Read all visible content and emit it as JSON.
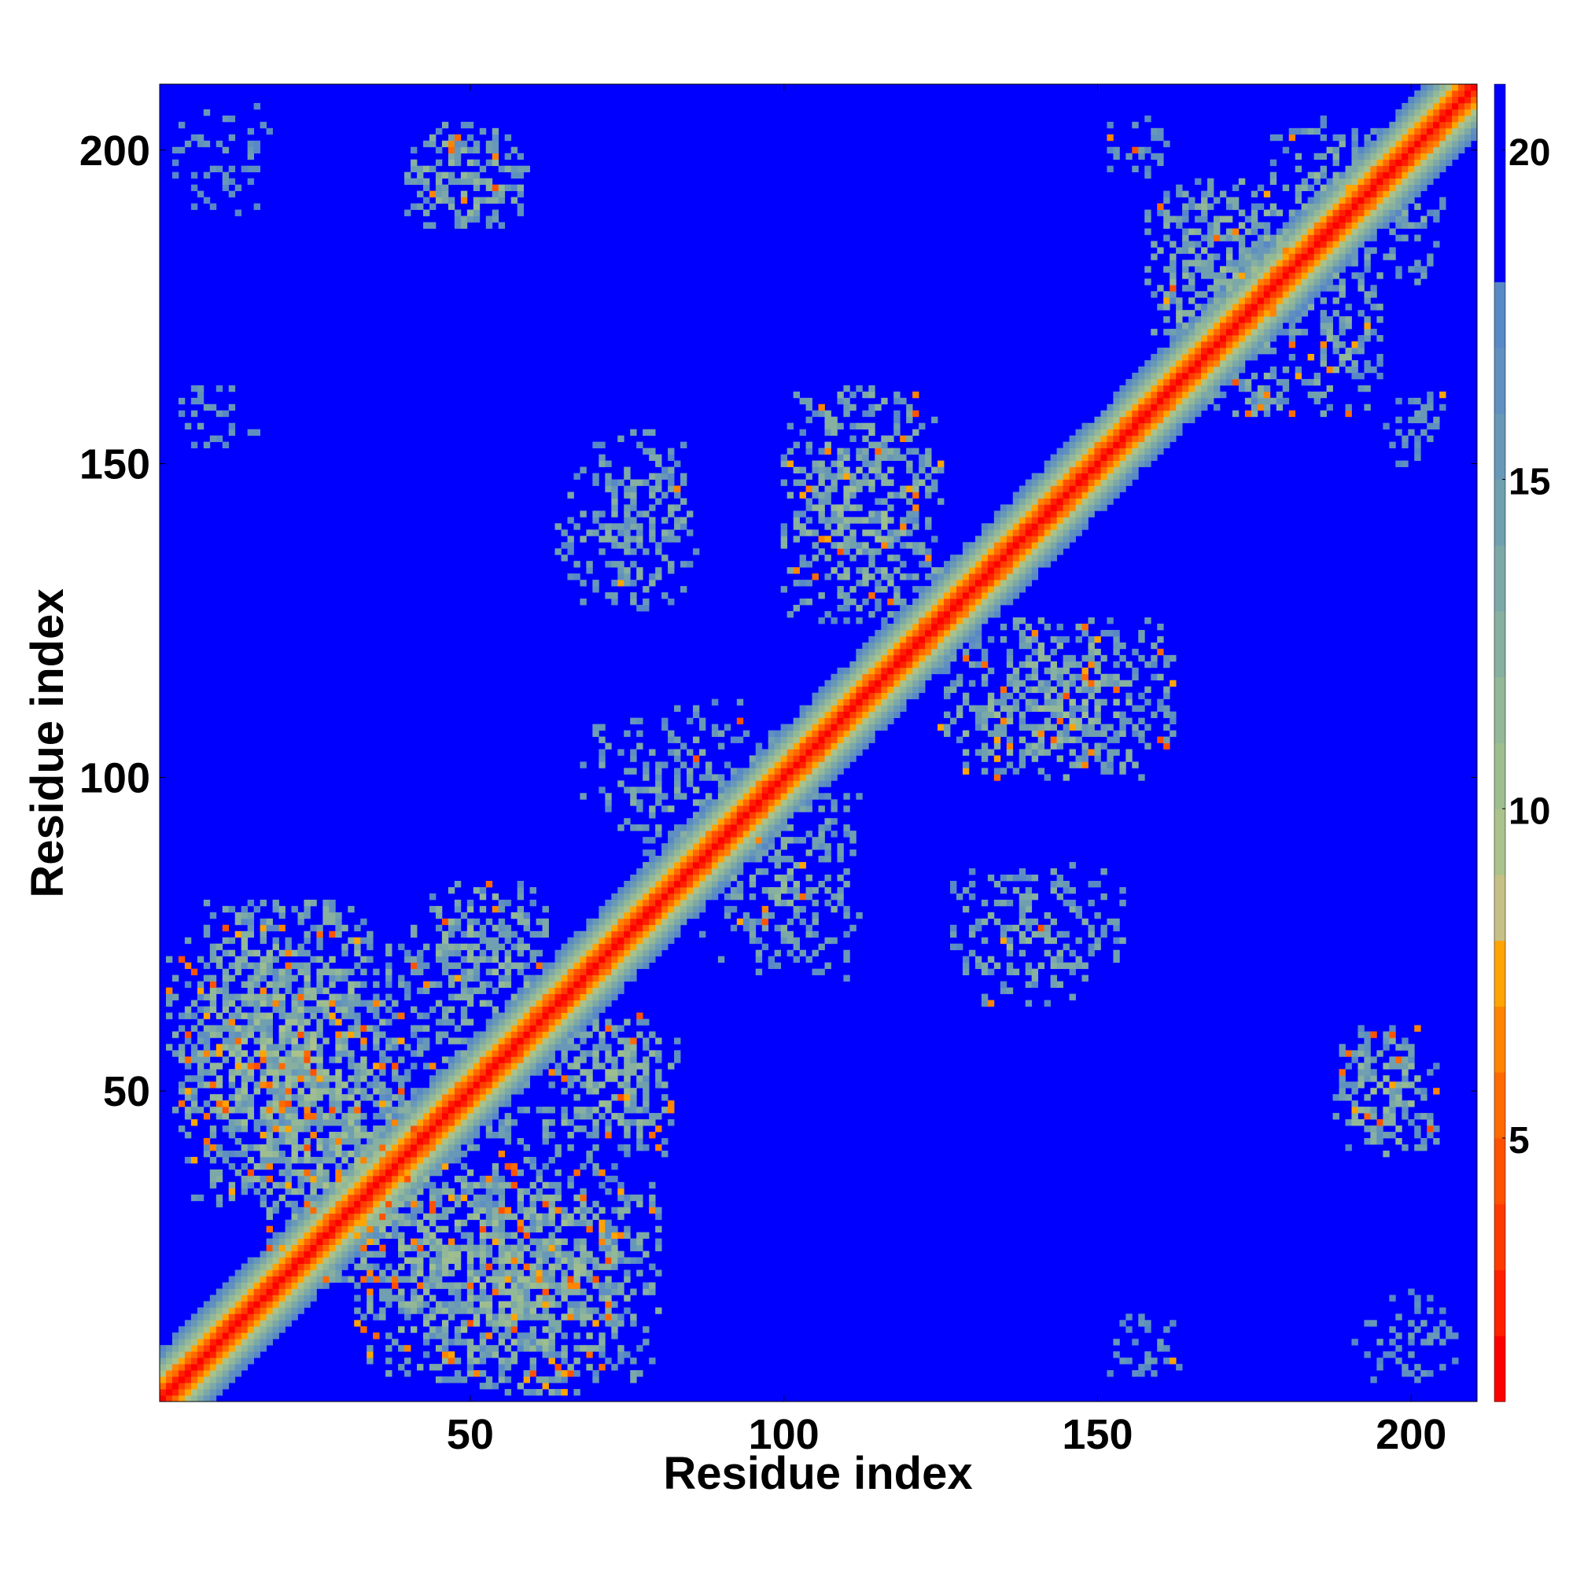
{
  "chart_data": {
    "type": "heatmap",
    "title": "",
    "xlabel": "Residue index",
    "ylabel": "Residue index",
    "n_residues": 210,
    "xlim": [
      1,
      210
    ],
    "ylim": [
      1,
      210
    ],
    "x_ticks": [
      50,
      100,
      150,
      200
    ],
    "y_ticks": [
      50,
      100,
      150,
      200
    ],
    "x_tick_labels": [
      "50",
      "100",
      "150",
      "200"
    ],
    "y_tick_labels": [
      "50",
      "100",
      "150",
      "200"
    ],
    "value_scale": {
      "vmin": 1,
      "vmax": 21,
      "cutoff": 18,
      "colorbar_ticks": [
        5,
        10,
        15,
        20
      ],
      "colorbar_tick_labels": [
        "5",
        "10",
        "15",
        "20"
      ]
    },
    "colormap": [
      {
        "max": 2,
        "color": "#ff0000"
      },
      {
        "max": 3,
        "color": "#ff2000"
      },
      {
        "max": 4,
        "color": "#ff3a00"
      },
      {
        "max": 5,
        "color": "#ff5200"
      },
      {
        "max": 6,
        "color": "#ff6a00"
      },
      {
        "max": 7,
        "color": "#ff8400"
      },
      {
        "max": 8,
        "color": "#ffa400"
      },
      {
        "max": 9,
        "color": "#c6c086"
      },
      {
        "max": 10,
        "color": "#aac28c"
      },
      {
        "max": 11,
        "color": "#9ebe90"
      },
      {
        "max": 12,
        "color": "#93b898"
      },
      {
        "max": 13,
        "color": "#87b0a0"
      },
      {
        "max": 14,
        "color": "#7ca8a8"
      },
      {
        "max": 15,
        "color": "#70a0b0"
      },
      {
        "max": 16,
        "color": "#6898b8"
      },
      {
        "max": 17,
        "color": "#6090c0"
      },
      {
        "max": 18,
        "color": "#5888c6"
      },
      {
        "max": 99,
        "color": "#0000ff"
      }
    ],
    "background_color": "#0000ff",
    "band": {
      "core_half_width": 1.5,
      "mid_half_width": 4,
      "outer_half_width": 8
    },
    "contact_regions": [
      {
        "x": [
          18,
          45
        ],
        "y": [
          20,
          52
        ],
        "strength": "strong"
      },
      {
        "x": [
          32,
          80
        ],
        "y": [
          4,
          38
        ],
        "strength": "strong"
      },
      {
        "x": [
          2,
          40
        ],
        "y": [
          45,
          80
        ],
        "strength": "medium"
      },
      {
        "x": [
          37,
          62
        ],
        "y": [
          48,
          82
        ],
        "strength": "sparse"
      },
      {
        "x": [
          62,
          83
        ],
        "y": [
          42,
          62
        ],
        "strength": "medium"
      },
      {
        "x": [
          68,
          98
        ],
        "y": [
          90,
          112
        ],
        "strength": "sparse"
      },
      {
        "x": [
          85,
          110
        ],
        "y": [
          74,
          95
        ],
        "strength": "sparse"
      },
      {
        "x": [
          100,
          125
        ],
        "y": [
          125,
          157
        ],
        "strength": "medium"
      },
      {
        "x": [
          127,
          162
        ],
        "y": [
          100,
          125
        ],
        "strength": "medium"
      },
      {
        "x": [
          64,
          86
        ],
        "y": [
          128,
          150
        ],
        "strength": "sparse"
      },
      {
        "x": [
          127,
          155
        ],
        "y": [
          67,
          86
        ],
        "strength": "sparse"
      },
      {
        "x": [
          40,
          60
        ],
        "y": [
          189,
          203
        ],
        "strength": "medium"
      },
      {
        "x": [
          188,
          204
        ],
        "y": [
          40,
          57
        ],
        "strength": "medium"
      },
      {
        "x": [
          158,
          185
        ],
        "y": [
          165,
          195
        ],
        "strength": "medium"
      },
      {
        "x": [
          178,
          195
        ],
        "y": [
          185,
          205
        ],
        "strength": "sparse"
      },
      {
        "x": [
          153,
          165
        ],
        "y": [
          3,
          15
        ],
        "strength": "faint"
      },
      {
        "x": [
          190,
          208
        ],
        "y": [
          4,
          18
        ],
        "strength": "faint"
      },
      {
        "x": [
          3,
          18
        ],
        "y": [
          193,
          208
        ],
        "strength": "faint"
      },
      {
        "x": [
          3,
          16
        ],
        "y": [
          152,
          160
        ],
        "strength": "faint"
      },
      {
        "x": [
          153,
          162
        ],
        "y": [
          196,
          206
        ],
        "strength": "faint"
      },
      {
        "x": [
          196,
          205
        ],
        "y": [
          150,
          160
        ],
        "strength": "faint"
      }
    ],
    "grid": false,
    "legend": "colorbar-right"
  }
}
